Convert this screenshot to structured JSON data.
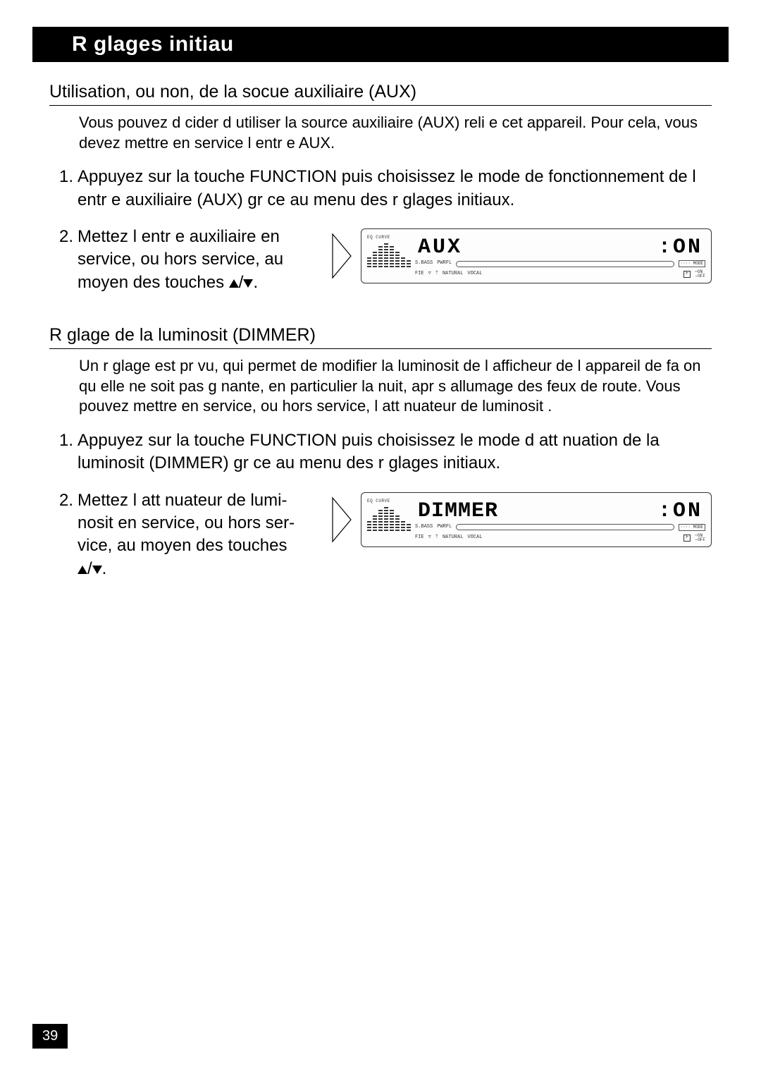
{
  "header": {
    "title": "R glages initiau"
  },
  "sections": [
    {
      "title": "Utilisation, ou non, de la socue auxiliaire (AUX)",
      "intro": "Vous pouvez d cider d utiliser la source auxiliaire (AUX) reli e   cet appareil. Pour cela, vous devez mettre en service l entr e AUX.",
      "step1": "Appuyez sur la touche FUNCTION puis choisissez le mode de fonction­nement de l entr e auxiliaire (AUX) gr ce au menu des r glages initiaux.",
      "step2": "Mettez l entr e auxiliaire en service, ou hors service, au moyen des touches",
      "display": {
        "left": "AUX",
        "right": ":ON"
      }
    },
    {
      "title": "R glage de la luminosit  (DIMMER)",
      "intro": "Un r glage est pr vu, qui permet de modifier la luminosit  de l afficheur de l appareil de fa on qu elle ne soit pas g nante, en particulier la nuit, apr s allumage des feux de route. Vous pouvez mettre en service, ou hors service, l att nuateur de luminosit .",
      "step1": "Appuyez sur la touche FUNCTION puis choisissez le mode d att nuation de la luminosit  (DIMMER) gr ce au menu des r glages initiaux.",
      "step2": "Mettez l att nuateur de lumi­nosit  en service, ou hors ser­vice, au moyen des touches",
      "display": {
        "left": "DIMMER",
        "right": ":ON"
      }
    }
  ],
  "lcd_labels": {
    "eq": "EQ CURVE",
    "sbass": "S.BASS",
    "pwrfl": "PWRFL",
    "fie": "FIE",
    "natural": "NATURAL",
    "vocal": "VOCAL",
    "mode": "···· MODE",
    "on": "ON",
    "off": "OFF",
    "f": "F"
  },
  "eq_bar_heights": [
    14,
    22,
    30,
    36,
    30,
    22,
    14,
    10
  ],
  "colors": {
    "bg": "#ffffff",
    "fg": "#000000",
    "lcd_border": "#333333"
  },
  "page_number": "39"
}
